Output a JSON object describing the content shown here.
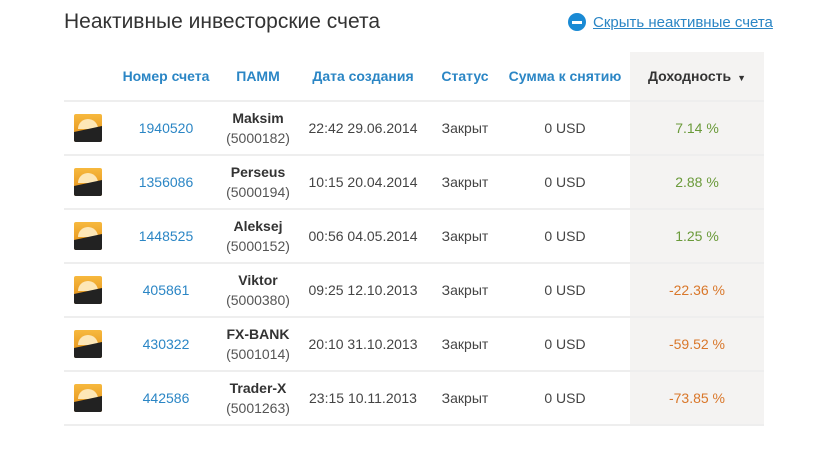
{
  "title": "Неактивные инвесторские счета",
  "hide_link": {
    "icon": "minus-circle-icon",
    "label": "Скрыть неактивные счета"
  },
  "columns": [
    "Номер счета",
    "ПАММ",
    "Дата создания",
    "Статус",
    "Сумма к снятию",
    "Доходность"
  ],
  "sort_indicator": "▼",
  "colors": {
    "positive": "#6a9a3a",
    "negative": "#d9772a",
    "link": "#2b86c5"
  },
  "rows": [
    {
      "account": "1940520",
      "pamm": "Maksim",
      "pamm_id": "(5000182)",
      "created": "22:42 29.06.2014",
      "status": "Закрыт",
      "withdraw": "0 USD",
      "yield": "7.14 %",
      "sign": "pos"
    },
    {
      "account": "1356086",
      "pamm": "Perseus",
      "pamm_id": "(5000194)",
      "created": "10:15 20.04.2014",
      "status": "Закрыт",
      "withdraw": "0 USD",
      "yield": "2.88 %",
      "sign": "pos"
    },
    {
      "account": "1448525",
      "pamm": "Aleksej",
      "pamm_id": "(5000152)",
      "created": "00:56 04.05.2014",
      "status": "Закрыт",
      "withdraw": "0 USD",
      "yield": "1.25 %",
      "sign": "pos"
    },
    {
      "account": "405861",
      "pamm": "Viktor",
      "pamm_id": "(5000380)",
      "created": "09:25 12.10.2013",
      "status": "Закрыт",
      "withdraw": "0 USD",
      "yield": "-22.36 %",
      "sign": "neg"
    },
    {
      "account": "430322",
      "pamm": "FX-BANK",
      "pamm_id": "(5001014)",
      "created": "20:10 31.10.2013",
      "status": "Закрыт",
      "withdraw": "0 USD",
      "yield": "-59.52 %",
      "sign": "neg"
    },
    {
      "account": "442586",
      "pamm": "Trader-X",
      "pamm_id": "(5001263)",
      "created": "23:15 10.11.2013",
      "status": "Закрыт",
      "withdraw": "0 USD",
      "yield": "-73.85 %",
      "sign": "neg"
    }
  ]
}
